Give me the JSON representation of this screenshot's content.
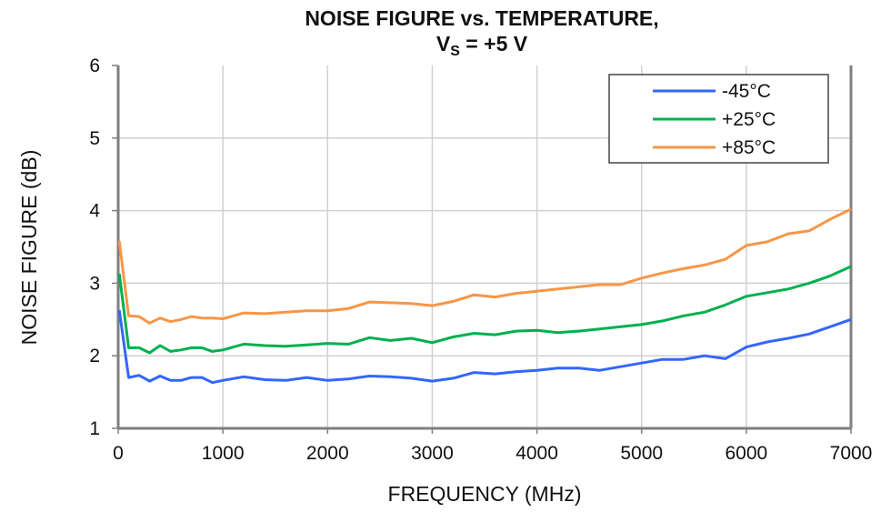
{
  "chart_data": {
    "type": "line",
    "title": "NOISE FIGURE vs. TEMPERATURE,",
    "subtitle": {
      "prefix": "V",
      "subscript": "S",
      "suffix": " = +5 V"
    },
    "xlabel": "FREQUENCY (MHz)",
    "ylabel": "NOISE FIGURE (dB)",
    "xlim": [
      0,
      7000
    ],
    "ylim": [
      1,
      6
    ],
    "xticks": [
      0,
      1000,
      2000,
      3000,
      4000,
      5000,
      6000,
      7000
    ],
    "xtick_labels": [
      "0",
      "1000",
      "2000",
      "3000",
      "4000",
      "5000",
      "6000",
      "7000"
    ],
    "yticks": [
      1,
      2,
      3,
      4,
      5,
      6
    ],
    "ytick_labels": [
      "1",
      "2",
      "3",
      "4",
      "5",
      "6"
    ],
    "grid": true,
    "legend_position": "top-right",
    "x": [
      10,
      100,
      200,
      300,
      400,
      500,
      600,
      700,
      800,
      900,
      1000,
      1200,
      1400,
      1600,
      1800,
      2000,
      2200,
      2400,
      2600,
      2800,
      3000,
      3200,
      3400,
      3600,
      3800,
      4000,
      4200,
      4400,
      4600,
      4800,
      5000,
      5200,
      5400,
      5600,
      5800,
      6000,
      6200,
      6400,
      6600,
      6800,
      7000
    ],
    "series": [
      {
        "name": "-45°C",
        "color": "#3366ff",
        "values": [
          2.63,
          1.7,
          1.73,
          1.65,
          1.72,
          1.66,
          1.66,
          1.7,
          1.7,
          1.63,
          1.66,
          1.71,
          1.67,
          1.66,
          1.7,
          1.66,
          1.68,
          1.72,
          1.71,
          1.69,
          1.65,
          1.69,
          1.77,
          1.75,
          1.78,
          1.8,
          1.83,
          1.83,
          1.8,
          1.85,
          1.9,
          1.95,
          1.95,
          2.0,
          1.96,
          2.12,
          2.19,
          2.24,
          2.3,
          2.4,
          2.5
        ]
      },
      {
        "name": "+25°C",
        "color": "#00b050",
        "values": [
          3.13,
          2.11,
          2.11,
          2.04,
          2.14,
          2.06,
          2.08,
          2.11,
          2.11,
          2.06,
          2.08,
          2.16,
          2.14,
          2.13,
          2.15,
          2.17,
          2.16,
          2.25,
          2.21,
          2.24,
          2.18,
          2.26,
          2.31,
          2.29,
          2.34,
          2.35,
          2.32,
          2.34,
          2.37,
          2.4,
          2.43,
          2.48,
          2.55,
          2.6,
          2.7,
          2.82,
          2.87,
          2.92,
          3.0,
          3.1,
          3.23
        ]
      },
      {
        "name": "+85°C",
        "color": "#f79646",
        "values": [
          3.58,
          2.55,
          2.54,
          2.45,
          2.52,
          2.47,
          2.5,
          2.54,
          2.52,
          2.52,
          2.51,
          2.59,
          2.58,
          2.6,
          2.62,
          2.62,
          2.65,
          2.74,
          2.73,
          2.72,
          2.69,
          2.75,
          2.84,
          2.81,
          2.86,
          2.89,
          2.92,
          2.95,
          2.98,
          2.98,
          3.07,
          3.14,
          3.2,
          3.25,
          3.33,
          3.52,
          3.57,
          3.68,
          3.72,
          3.88,
          4.02
        ]
      }
    ]
  }
}
